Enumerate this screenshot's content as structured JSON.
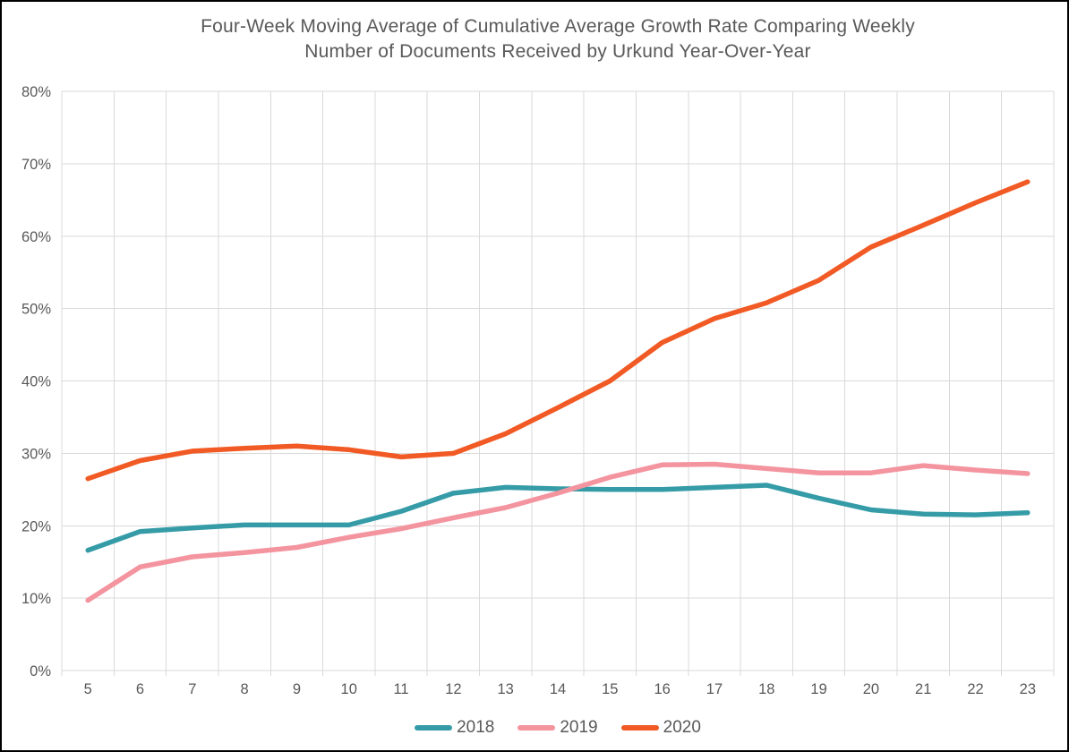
{
  "frame": {
    "background_color": "#FFFFFF",
    "border_color": "#000000"
  },
  "title": {
    "line1": "Four-Week Moving Average of Cumulative Average Growth Rate Comparing Weekly",
    "line2": "Number of Documents Received by Urkund Year-Over-Year"
  },
  "chart_data": {
    "type": "line",
    "title": "Four-Week Moving Average of Cumulative Average Growth Rate Comparing Weekly Number of Documents Received by Urkund Year-Over-Year",
    "xlabel": "",
    "ylabel": "",
    "categories": [
      "5",
      "6",
      "7",
      "8",
      "9",
      "10",
      "11",
      "12",
      "13",
      "14",
      "15",
      "16",
      "17",
      "18",
      "19",
      "20",
      "21",
      "22",
      "23"
    ],
    "series": [
      {
        "name": "2018",
        "color": "#359CA7",
        "values": [
          16.6,
          19.2,
          19.7,
          20.1,
          20.1,
          20.1,
          22.0,
          24.5,
          25.3,
          25.1,
          25.0,
          25.0,
          25.3,
          25.6,
          23.8,
          22.2,
          21.6,
          21.5,
          21.8
        ]
      },
      {
        "name": "2019",
        "color": "#F3949F",
        "values": [
          9.7,
          14.3,
          15.7,
          16.3,
          17.0,
          18.4,
          19.6,
          21.1,
          22.5,
          24.5,
          26.7,
          28.4,
          28.5,
          27.9,
          27.3,
          27.3,
          28.3,
          27.7,
          27.2
        ]
      },
      {
        "name": "2020",
        "color": "#F15A24",
        "values": [
          26.5,
          29.0,
          30.3,
          30.7,
          31.0,
          30.5,
          29.5,
          30.0,
          32.7,
          36.3,
          40.0,
          45.3,
          48.6,
          50.8,
          53.9,
          58.5,
          61.5,
          64.6,
          67.5
        ]
      }
    ],
    "ylim": [
      0,
      80
    ],
    "ytick_step": 10,
    "y_tick_labels": [
      "0%",
      "10%",
      "20%",
      "30%",
      "40%",
      "50%",
      "60%",
      "70%",
      "80%"
    ],
    "grid": true,
    "legend_position": "bottom",
    "style": {
      "grid_color": "#D9D9D9",
      "text_color": "#595959"
    }
  }
}
